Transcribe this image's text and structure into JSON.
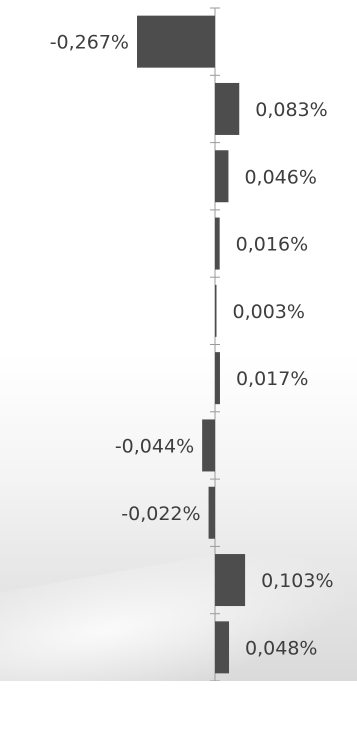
{
  "chart_data": {
    "type": "bar",
    "orientation": "horizontal",
    "values": [
      -0.267,
      0.083,
      0.046,
      0.016,
      0.003,
      0.017,
      -0.044,
      -0.022,
      0.103,
      0.048
    ],
    "value_labels": [
      "-0,267%",
      "0,083%",
      "0,046%",
      "0,016%",
      "0,003%",
      "0,017%",
      "-0,044%",
      "-0,022%",
      "0,103%",
      "0,048%"
    ],
    "unit": "%",
    "bar_color": "#4d4d4d",
    "axis_color": "#9a9a9a",
    "grid": false,
    "legend": false
  }
}
